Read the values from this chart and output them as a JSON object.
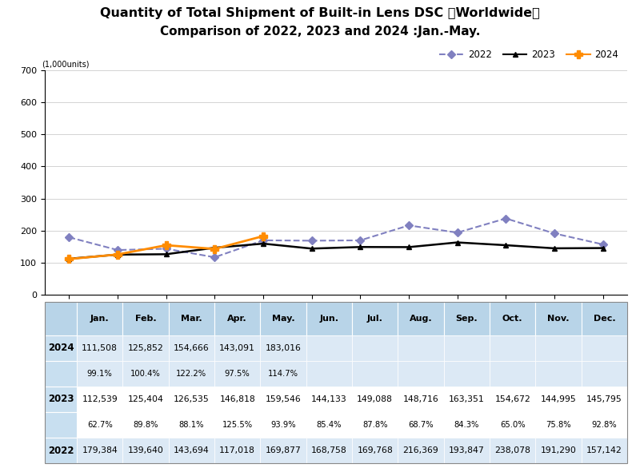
{
  "title_line1": "Quantity of Total Shipment of Built-in Lens DSC ［Worldwide］",
  "title_line2": "Comparison of 2022, 2023 and 2024 :Jan.-May.",
  "ylabel": "(1,000units)",
  "ylim": [
    0,
    700
  ],
  "yticks": [
    0,
    100,
    200,
    300,
    400,
    500,
    600,
    700
  ],
  "months": [
    "Jan.",
    "Feb.",
    "Mar.",
    "Apr.",
    "May.",
    "Jun.",
    "Jul.",
    "Aug.",
    "Sep.",
    "Oct.",
    "Nov.",
    "Dec."
  ],
  "data_2022": [
    179384,
    139640,
    143694,
    117018,
    169877,
    168758,
    169768,
    216369,
    193847,
    238078,
    191290,
    157142
  ],
  "data_2023": [
    112539,
    125404,
    126535,
    146818,
    159546,
    144133,
    149088,
    148716,
    163351,
    154672,
    144995,
    145795
  ],
  "data_2024": [
    111508,
    125852,
    154666,
    143091,
    183016,
    null,
    null,
    null,
    null,
    null,
    null,
    null
  ],
  "pct_2023": [
    "62.7%",
    "89.8%",
    "88.1%",
    "125.5%",
    "93.9%",
    "85.4%",
    "87.8%",
    "68.7%",
    "84.3%",
    "65.0%",
    "75.8%",
    "92.8%"
  ],
  "pct_2024": [
    "99.1%",
    "100.4%",
    "122.2%",
    "97.5%",
    "114.7%",
    "",
    "",
    "",
    "",
    "",
    "",
    ""
  ],
  "color_2022": "#8080C0",
  "color_2023": "#000000",
  "color_2024": "#FF8C00",
  "table_header_bg": "#B8D4E8",
  "table_row_bg_light": "#DCE9F5",
  "table_row_bg_white": "#F0F6FB",
  "table_year_col_bg": "#C8DFF0"
}
